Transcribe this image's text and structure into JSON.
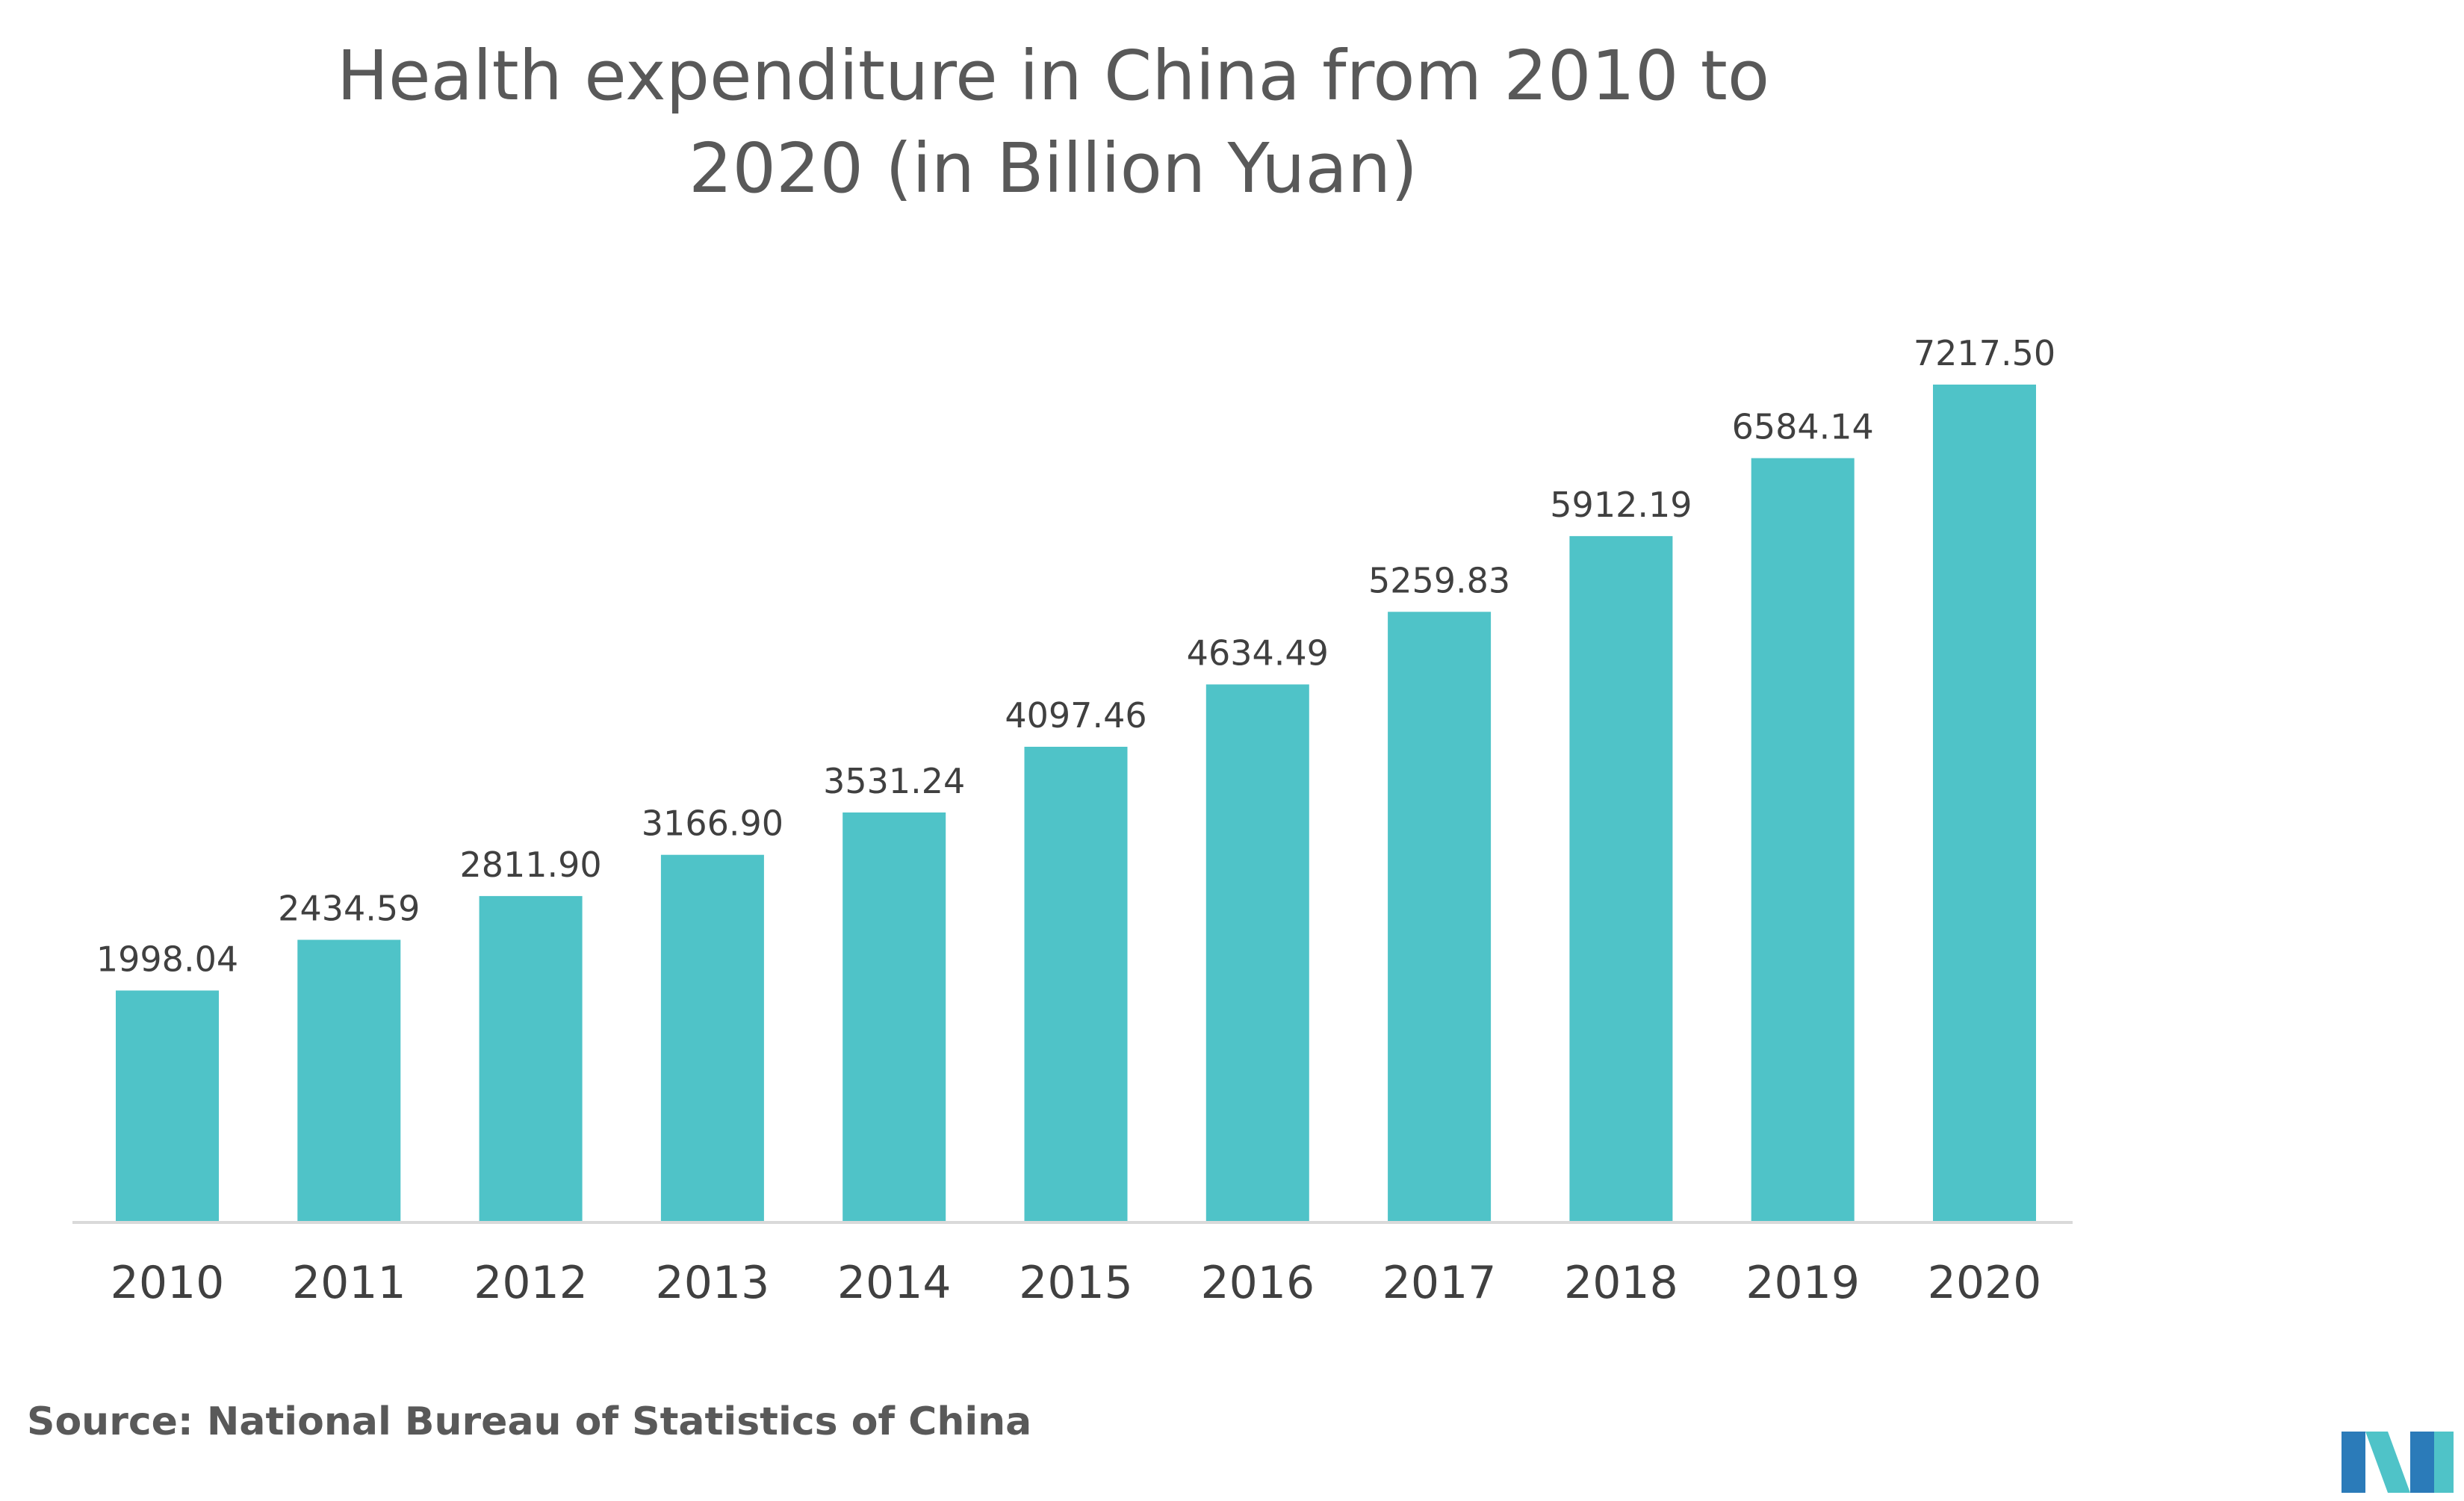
{
  "title_lines": [
    "Health expenditure in China from 2010 to",
    "2020 (in Billion Yuan)"
  ],
  "source": "Source:  National Bureau of Statistics of China",
  "colors": {
    "bar": "#4FC3C8",
    "axis": "#D9D9D9",
    "logo_dark": "#2B7BB9",
    "logo_light": "#4FC3C8"
  },
  "logo_icon": "market-research-logo-icon",
  "chart_data": {
    "type": "bar",
    "title": "Health expenditure in China from 2010 to 2020 (in Billion Yuan)",
    "categories": [
      "2010",
      "2011",
      "2012",
      "2013",
      "2014",
      "2015",
      "2016",
      "2017",
      "2018",
      "2019",
      "2020"
    ],
    "values": [
      1998.04,
      2434.59,
      2811.9,
      3166.9,
      3531.24,
      4097.46,
      4634.49,
      5259.83,
      5912.19,
      6584.14,
      7217.5
    ],
    "value_labels": [
      "1998.04",
      "2434.59",
      "2811.90",
      "3166.90",
      "3531.24",
      "4097.46",
      "4634.49",
      "5259.83",
      "5912.19",
      "6584.14",
      "7217.50"
    ],
    "xlabel": "",
    "ylabel": "",
    "ylim": [
      0,
      7217.5
    ],
    "grid": false,
    "legend": "none"
  }
}
